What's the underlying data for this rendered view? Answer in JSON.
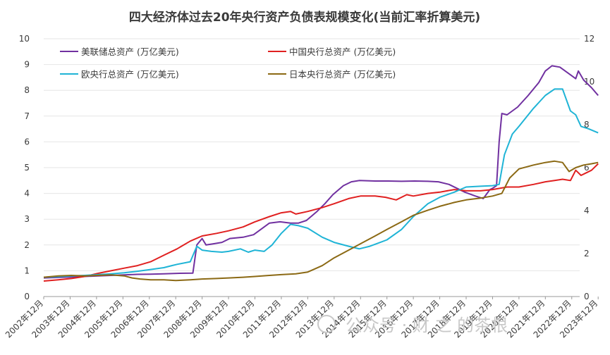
{
  "chart_data": {
    "type": "line",
    "title": "四大经济体过去20年央行资产负债表规模变化(当前汇率折算美元)",
    "xlabel": "",
    "ylabel": "",
    "x_categories": [
      "2002年12月",
      "2003年12月",
      "2004年12月",
      "2005年12月",
      "2006年12月",
      "2007年12月",
      "2008年12月",
      "2009年12月",
      "2010年12月",
      "2011年12月",
      "2012年12月",
      "2013年12月",
      "2014年12月",
      "2015年12月",
      "2016年12月",
      "2017年12月",
      "2018年12月",
      "2019年12月",
      "2020年12月",
      "2021年12月",
      "2022年12月",
      "2023年12月"
    ],
    "x_range": [
      2002.95,
      2023.25
    ],
    "ylim_left": [
      0,
      10
    ],
    "ylim_right": [
      0,
      12
    ],
    "yticks_left": [
      "0",
      "1",
      "2",
      "3",
      "4",
      "5",
      "6",
      "7",
      "8",
      "9",
      "10"
    ],
    "yticks_right": [
      "0",
      "2",
      "4",
      "6",
      "8",
      "10",
      "12"
    ],
    "grid": true,
    "legend_position": "top-left, two columns",
    "series": [
      {
        "name": "美联储总资产 (万亿美元)",
        "color": "#7030a0",
        "axis": "left",
        "points": [
          [
            2002.95,
            0.72
          ],
          [
            2003.5,
            0.74
          ],
          [
            2004.0,
            0.76
          ],
          [
            2004.5,
            0.78
          ],
          [
            2005.0,
            0.8
          ],
          [
            2005.5,
            0.82
          ],
          [
            2006.0,
            0.84
          ],
          [
            2006.5,
            0.86
          ],
          [
            2007.0,
            0.87
          ],
          [
            2007.5,
            0.88
          ],
          [
            2008.0,
            0.9
          ],
          [
            2008.6,
            0.91
          ],
          [
            2008.75,
            2.0
          ],
          [
            2008.95,
            2.25
          ],
          [
            2009.1,
            2.0
          ],
          [
            2009.4,
            2.05
          ],
          [
            2009.7,
            2.1
          ],
          [
            2010.0,
            2.25
          ],
          [
            2010.5,
            2.3
          ],
          [
            2010.9,
            2.4
          ],
          [
            2011.3,
            2.7
          ],
          [
            2011.5,
            2.85
          ],
          [
            2011.9,
            2.9
          ],
          [
            2012.3,
            2.85
          ],
          [
            2012.6,
            2.85
          ],
          [
            2012.9,
            2.95
          ],
          [
            2013.3,
            3.3
          ],
          [
            2013.6,
            3.6
          ],
          [
            2013.9,
            3.95
          ],
          [
            2014.3,
            4.3
          ],
          [
            2014.6,
            4.45
          ],
          [
            2014.9,
            4.5
          ],
          [
            2015.5,
            4.48
          ],
          [
            2016.0,
            4.48
          ],
          [
            2016.5,
            4.47
          ],
          [
            2017.0,
            4.48
          ],
          [
            2017.5,
            4.47
          ],
          [
            2017.9,
            4.45
          ],
          [
            2018.3,
            4.35
          ],
          [
            2018.6,
            4.2
          ],
          [
            2018.9,
            4.05
          ],
          [
            2019.3,
            3.9
          ],
          [
            2019.6,
            3.8
          ],
          [
            2019.85,
            4.15
          ],
          [
            2019.95,
            4.2
          ],
          [
            2020.1,
            4.3
          ],
          [
            2020.2,
            6.0
          ],
          [
            2020.3,
            7.1
          ],
          [
            2020.5,
            7.05
          ],
          [
            2020.9,
            7.35
          ],
          [
            2021.3,
            7.8
          ],
          [
            2021.7,
            8.3
          ],
          [
            2021.95,
            8.75
          ],
          [
            2022.2,
            8.95
          ],
          [
            2022.5,
            8.9
          ],
          [
            2022.9,
            8.6
          ],
          [
            2023.1,
            8.45
          ],
          [
            2023.2,
            8.75
          ],
          [
            2023.4,
            8.4
          ],
          [
            2023.7,
            8.1
          ],
          [
            2023.95,
            7.8
          ]
        ]
      },
      {
        "name": "中国央行总资产 (万亿美元)",
        "color": "#e02020",
        "axis": "left",
        "points": [
          [
            2002.95,
            0.6
          ],
          [
            2003.5,
            0.65
          ],
          [
            2004.0,
            0.7
          ],
          [
            2004.5,
            0.78
          ],
          [
            2005.0,
            0.9
          ],
          [
            2005.5,
            1.0
          ],
          [
            2006.0,
            1.1
          ],
          [
            2006.5,
            1.2
          ],
          [
            2007.0,
            1.35
          ],
          [
            2007.5,
            1.6
          ],
          [
            2008.0,
            1.85
          ],
          [
            2008.5,
            2.15
          ],
          [
            2008.95,
            2.35
          ],
          [
            2009.5,
            2.45
          ],
          [
            2009.95,
            2.55
          ],
          [
            2010.5,
            2.7
          ],
          [
            2010.95,
            2.9
          ],
          [
            2011.5,
            3.1
          ],
          [
            2011.95,
            3.25
          ],
          [
            2012.3,
            3.3
          ],
          [
            2012.5,
            3.2
          ],
          [
            2012.95,
            3.3
          ],
          [
            2013.5,
            3.45
          ],
          [
            2013.95,
            3.6
          ],
          [
            2014.5,
            3.8
          ],
          [
            2014.95,
            3.9
          ],
          [
            2015.5,
            3.9
          ],
          [
            2015.9,
            3.85
          ],
          [
            2016.3,
            3.75
          ],
          [
            2016.7,
            3.95
          ],
          [
            2016.95,
            3.9
          ],
          [
            2017.5,
            4.0
          ],
          [
            2017.95,
            4.05
          ],
          [
            2018.5,
            4.15
          ],
          [
            2018.95,
            4.1
          ],
          [
            2019.5,
            4.1
          ],
          [
            2019.95,
            4.15
          ],
          [
            2020.5,
            4.25
          ],
          [
            2020.95,
            4.25
          ],
          [
            2021.5,
            4.35
          ],
          [
            2021.95,
            4.45
          ],
          [
            2022.3,
            4.5
          ],
          [
            2022.6,
            4.55
          ],
          [
            2022.9,
            4.5
          ],
          [
            2023.1,
            4.9
          ],
          [
            2023.3,
            4.7
          ],
          [
            2023.5,
            4.8
          ],
          [
            2023.7,
            4.9
          ],
          [
            2023.95,
            5.15
          ]
        ]
      },
      {
        "name": "欧央行总资产 (万亿美元)",
        "color": "#1fb4d6",
        "axis": "left",
        "points": [
          [
            2002.95,
            0.75
          ],
          [
            2003.5,
            0.77
          ],
          [
            2004.0,
            0.8
          ],
          [
            2004.5,
            0.82
          ],
          [
            2005.0,
            0.85
          ],
          [
            2005.5,
            0.88
          ],
          [
            2006.0,
            0.92
          ],
          [
            2006.5,
            0.98
          ],
          [
            2007.0,
            1.05
          ],
          [
            2007.5,
            1.12
          ],
          [
            2007.8,
            1.2
          ],
          [
            2008.0,
            1.25
          ],
          [
            2008.5,
            1.35
          ],
          [
            2008.75,
            1.95
          ],
          [
            2008.95,
            1.8
          ],
          [
            2009.3,
            1.75
          ],
          [
            2009.7,
            1.72
          ],
          [
            2009.95,
            1.75
          ],
          [
            2010.4,
            1.85
          ],
          [
            2010.7,
            1.72
          ],
          [
            2010.95,
            1.8
          ],
          [
            2011.3,
            1.75
          ],
          [
            2011.6,
            2.0
          ],
          [
            2011.95,
            2.45
          ],
          [
            2012.3,
            2.8
          ],
          [
            2012.6,
            2.75
          ],
          [
            2012.95,
            2.65
          ],
          [
            2013.5,
            2.3
          ],
          [
            2013.95,
            2.1
          ],
          [
            2014.5,
            1.95
          ],
          [
            2014.9,
            1.85
          ],
          [
            2015.3,
            1.95
          ],
          [
            2015.7,
            2.1
          ],
          [
            2015.95,
            2.2
          ],
          [
            2016.5,
            2.6
          ],
          [
            2016.95,
            3.1
          ],
          [
            2017.5,
            3.6
          ],
          [
            2017.95,
            3.85
          ],
          [
            2018.5,
            4.05
          ],
          [
            2018.95,
            4.25
          ],
          [
            2019.5,
            4.28
          ],
          [
            2019.95,
            4.3
          ],
          [
            2020.2,
            4.35
          ],
          [
            2020.4,
            5.5
          ],
          [
            2020.7,
            6.3
          ],
          [
            2020.95,
            6.6
          ],
          [
            2021.5,
            7.3
          ],
          [
            2021.95,
            7.8
          ],
          [
            2022.3,
            8.05
          ],
          [
            2022.6,
            8.05
          ],
          [
            2022.9,
            7.2
          ],
          [
            2023.1,
            7.05
          ],
          [
            2023.3,
            6.6
          ],
          [
            2023.6,
            6.5
          ],
          [
            2023.95,
            6.35
          ]
        ]
      },
      {
        "name": "日本央行总资产 (万亿美元)",
        "color": "#8b6914",
        "axis": "left",
        "points": [
          [
            2002.95,
            0.75
          ],
          [
            2003.5,
            0.8
          ],
          [
            2004.0,
            0.82
          ],
          [
            2004.5,
            0.8
          ],
          [
            2005.0,
            0.82
          ],
          [
            2005.5,
            0.84
          ],
          [
            2006.0,
            0.8
          ],
          [
            2006.3,
            0.72
          ],
          [
            2006.6,
            0.68
          ],
          [
            2007.0,
            0.65
          ],
          [
            2007.5,
            0.65
          ],
          [
            2007.95,
            0.62
          ],
          [
            2008.5,
            0.65
          ],
          [
            2008.95,
            0.68
          ],
          [
            2009.5,
            0.7
          ],
          [
            2009.95,
            0.72
          ],
          [
            2010.5,
            0.75
          ],
          [
            2010.95,
            0.78
          ],
          [
            2011.5,
            0.82
          ],
          [
            2011.95,
            0.85
          ],
          [
            2012.5,
            0.88
          ],
          [
            2012.95,
            0.95
          ],
          [
            2013.5,
            1.2
          ],
          [
            2013.95,
            1.5
          ],
          [
            2014.5,
            1.8
          ],
          [
            2014.95,
            2.05
          ],
          [
            2015.5,
            2.35
          ],
          [
            2015.95,
            2.6
          ],
          [
            2016.5,
            2.9
          ],
          [
            2016.95,
            3.15
          ],
          [
            2017.5,
            3.35
          ],
          [
            2017.95,
            3.5
          ],
          [
            2018.5,
            3.65
          ],
          [
            2018.95,
            3.75
          ],
          [
            2019.5,
            3.82
          ],
          [
            2019.95,
            3.9
          ],
          [
            2020.3,
            4.0
          ],
          [
            2020.6,
            4.6
          ],
          [
            2020.95,
            4.95
          ],
          [
            2021.5,
            5.1
          ],
          [
            2021.95,
            5.2
          ],
          [
            2022.3,
            5.25
          ],
          [
            2022.6,
            5.2
          ],
          [
            2022.85,
            4.85
          ],
          [
            2023.1,
            5.0
          ],
          [
            2023.4,
            5.1
          ],
          [
            2023.7,
            5.15
          ],
          [
            2023.95,
            5.2
          ]
        ]
      }
    ]
  },
  "watermark": {
    "text": "公众号 · 财 之 的茶根"
  }
}
